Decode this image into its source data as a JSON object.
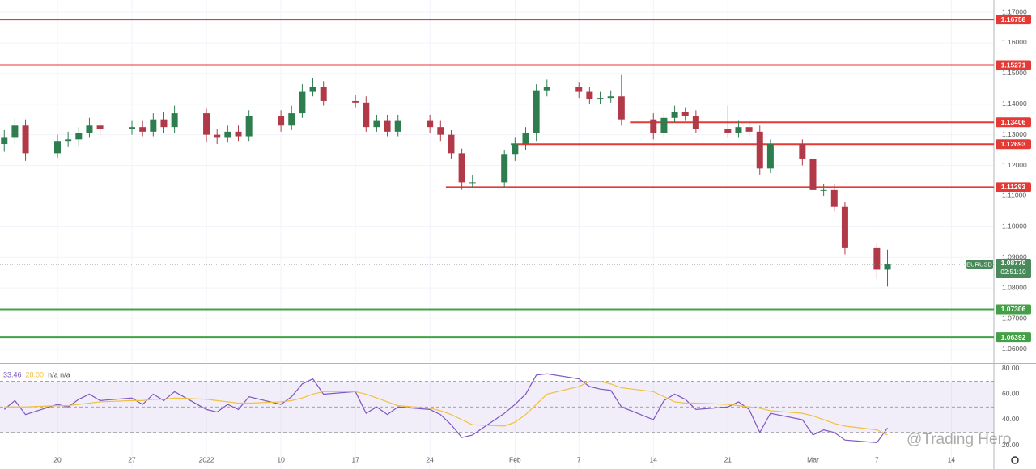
{
  "chart_data": [
    {
      "type": "candlestick",
      "symbol": "EURUSD",
      "last_label": "1.08770",
      "countdown": "02:51:10",
      "watermark": "@Trading Hero",
      "up_color": "#2e7d4f",
      "down_color": "#b23a48",
      "grid": true,
      "x": [
        -5,
        -4,
        -3,
        0,
        1,
        2,
        3,
        4,
        7,
        8,
        9,
        10,
        11,
        14,
        15,
        16,
        17,
        18,
        21,
        22,
        23,
        24,
        25,
        28,
        29,
        30,
        31,
        32,
        35,
        36,
        37,
        38,
        39,
        42,
        43,
        44,
        45,
        46,
        49,
        50,
        51,
        52,
        53,
        56,
        57,
        58,
        59,
        60,
        63,
        64,
        65,
        66,
        67,
        70,
        71,
        72,
        73,
        74,
        77,
        78
      ],
      "open": [
        1.127,
        1.129,
        1.133,
        1.124,
        1.128,
        1.1285,
        1.1305,
        1.133,
        1.132,
        1.1325,
        1.131,
        1.135,
        1.1325,
        1.137,
        1.13,
        1.129,
        1.131,
        1.1295,
        1.136,
        1.133,
        1.137,
        1.144,
        1.1455,
        1.141,
        1.1405,
        1.1325,
        1.1345,
        1.131,
        1.1345,
        1.1325,
        1.13,
        1.124,
        1.1145,
        1.1145,
        1.1235,
        1.127,
        1.1305,
        1.1445,
        1.1455,
        1.144,
        1.1415,
        1.142,
        1.1425,
        1.135,
        1.1305,
        1.1355,
        1.1375,
        1.136,
        1.132,
        1.1305,
        1.1325,
        1.131,
        1.119,
        1.127,
        1.122,
        1.112,
        1.112,
        1.1065,
        1.093,
        1.086
      ],
      "high": [
        1.1315,
        1.1355,
        1.135,
        1.13,
        1.131,
        1.1325,
        1.1355,
        1.135,
        1.1345,
        1.1345,
        1.137,
        1.1375,
        1.1395,
        1.1385,
        1.132,
        1.133,
        1.133,
        1.138,
        1.138,
        1.1395,
        1.1465,
        1.1485,
        1.1475,
        1.143,
        1.1425,
        1.1365,
        1.1365,
        1.1365,
        1.1365,
        1.1345,
        1.1315,
        1.1255,
        1.117,
        1.125,
        1.129,
        1.1325,
        1.1465,
        1.148,
        1.147,
        1.1455,
        1.144,
        1.1445,
        1.1495,
        1.137,
        1.1375,
        1.1395,
        1.139,
        1.138,
        1.1395,
        1.1345,
        1.1345,
        1.133,
        1.1285,
        1.1285,
        1.1245,
        1.114,
        1.114,
        1.108,
        1.0945,
        1.0925
      ],
      "low": [
        1.1245,
        1.127,
        1.1215,
        1.1225,
        1.126,
        1.1265,
        1.129,
        1.13,
        1.13,
        1.1295,
        1.1295,
        1.1305,
        1.1305,
        1.1275,
        1.127,
        1.1275,
        1.128,
        1.128,
        1.131,
        1.1315,
        1.1355,
        1.1425,
        1.1395,
        1.139,
        1.131,
        1.131,
        1.1295,
        1.1295,
        1.1305,
        1.128,
        1.122,
        1.1121,
        1.1125,
        1.1125,
        1.1215,
        1.125,
        1.128,
        1.1425,
        1.142,
        1.14,
        1.14,
        1.1405,
        1.133,
        1.1285,
        1.129,
        1.134,
        1.1345,
        1.1305,
        1.129,
        1.129,
        1.1295,
        1.117,
        1.1175,
        1.12,
        1.111,
        1.11,
        1.105,
        1.091,
        1.083,
        1.0805
      ],
      "close": [
        1.129,
        1.133,
        1.124,
        1.128,
        1.1285,
        1.1305,
        1.133,
        1.132,
        1.1325,
        1.131,
        1.135,
        1.1325,
        1.137,
        1.13,
        1.129,
        1.131,
        1.1295,
        1.136,
        1.133,
        1.137,
        1.144,
        1.1455,
        1.141,
        1.1405,
        1.1325,
        1.1345,
        1.131,
        1.1345,
        1.1325,
        1.13,
        1.124,
        1.1145,
        1.1145,
        1.1235,
        1.127,
        1.1305,
        1.1445,
        1.1455,
        1.144,
        1.1415,
        1.142,
        1.1425,
        1.135,
        1.1305,
        1.1355,
        1.1375,
        1.136,
        1.132,
        1.1305,
        1.1325,
        1.131,
        1.119,
        1.127,
        1.122,
        1.112,
        1.112,
        1.1065,
        1.093,
        1.086,
        1.0877
      ],
      "xlim": [
        -5.4,
        88
      ],
      "xticks": [
        {
          "value": 0,
          "label": "20"
        },
        {
          "value": 7,
          "label": "27"
        },
        {
          "value": 14,
          "label": "2022"
        },
        {
          "value": 21,
          "label": "10"
        },
        {
          "value": 28,
          "label": "17"
        },
        {
          "value": 35,
          "label": "24"
        },
        {
          "value": 43,
          "label": "Feb"
        },
        {
          "value": 49,
          "label": "7"
        },
        {
          "value": 56,
          "label": "14"
        },
        {
          "value": 63,
          "label": "21"
        },
        {
          "value": 71,
          "label": "Mar"
        },
        {
          "value": 77,
          "label": "7"
        },
        {
          "value": 84,
          "label": "14"
        }
      ],
      "ylim": [
        1.05604,
        1.17396
      ],
      "yticks": [
        {
          "value": 1.17,
          "label": "1.17000"
        },
        {
          "value": 1.16,
          "label": "1.16000"
        },
        {
          "value": 1.15,
          "label": "1.15000"
        },
        {
          "value": 1.14,
          "label": "1.14000"
        },
        {
          "value": 1.13,
          "label": "1.13000"
        },
        {
          "value": 1.12,
          "label": "1.12000"
        },
        {
          "value": 1.11,
          "label": "1.11000"
        },
        {
          "value": 1.1,
          "label": "1.10000"
        },
        {
          "value": 1.09,
          "label": "1.09000"
        },
        {
          "value": 1.08,
          "label": "1.08000"
        },
        {
          "value": 1.07,
          "label": "1.07000"
        },
        {
          "value": 1.06,
          "label": "1.06000"
        }
      ],
      "levels": [
        {
          "value": 1.16758,
          "label": "1.16758",
          "color": "#e53935"
        },
        {
          "value": 1.15271,
          "label": "1.15271",
          "color": "#e53935"
        },
        {
          "value": 1.13406,
          "label": "1.13406",
          "color": "#e53935",
          "from": 53.8
        },
        {
          "value": 1.12693,
          "label": "1.12693",
          "color": "#e53935",
          "from": 42.6
        },
        {
          "value": 1.11293,
          "label": "1.11293",
          "color": "#e53935",
          "from": 36.5
        },
        {
          "value": 1.07306,
          "label": "1.07306",
          "color": "#43a047"
        },
        {
          "value": 1.06392,
          "label": "1.06392",
          "color": "#43a047"
        }
      ]
    },
    {
      "type": "line",
      "legend": [
        "33.46",
        "28.00",
        "n/a n/a"
      ],
      "series": [
        {
          "color": "#7e57c2",
          "values": [
            48,
            55,
            44,
            52,
            50,
            56,
            60,
            55,
            57,
            52,
            60,
            55,
            62,
            48,
            46,
            52,
            48,
            58,
            52,
            58,
            68,
            72,
            60,
            62,
            45,
            50,
            44,
            50,
            48,
            44,
            36,
            26,
            28,
            45,
            52,
            60,
            75,
            76,
            72,
            66,
            64,
            63,
            50,
            40,
            55,
            60,
            56,
            48,
            50,
            54,
            48,
            30,
            45,
            40,
            28,
            32,
            30,
            24,
            22,
            33.46
          ]
        },
        {
          "color": "#f0c040",
          "values": [
            50,
            50,
            50,
            51,
            51,
            52,
            53,
            54,
            55,
            55,
            56,
            56,
            57,
            56,
            55,
            54,
            53,
            53,
            54,
            55,
            57,
            60,
            62,
            62,
            60,
            57,
            54,
            51,
            49,
            47,
            44,
            40,
            36,
            35,
            38,
            44,
            52,
            60,
            66,
            70,
            70,
            68,
            65,
            62,
            58,
            54,
            53,
            53,
            52,
            51,
            50,
            49,
            47,
            45,
            43,
            40,
            37,
            35,
            32,
            28
          ]
        }
      ],
      "ylim": [
        1.3,
        82.5
      ],
      "yticks": [
        {
          "value": 80,
          "label": "80.00"
        },
        {
          "value": 60,
          "label": "60.00"
        },
        {
          "value": 40,
          "label": "40.00"
        },
        {
          "value": 20,
          "label": "20.00"
        }
      ],
      "band": [
        30,
        70
      ],
      "guides": [
        30,
        50,
        70
      ]
    }
  ]
}
